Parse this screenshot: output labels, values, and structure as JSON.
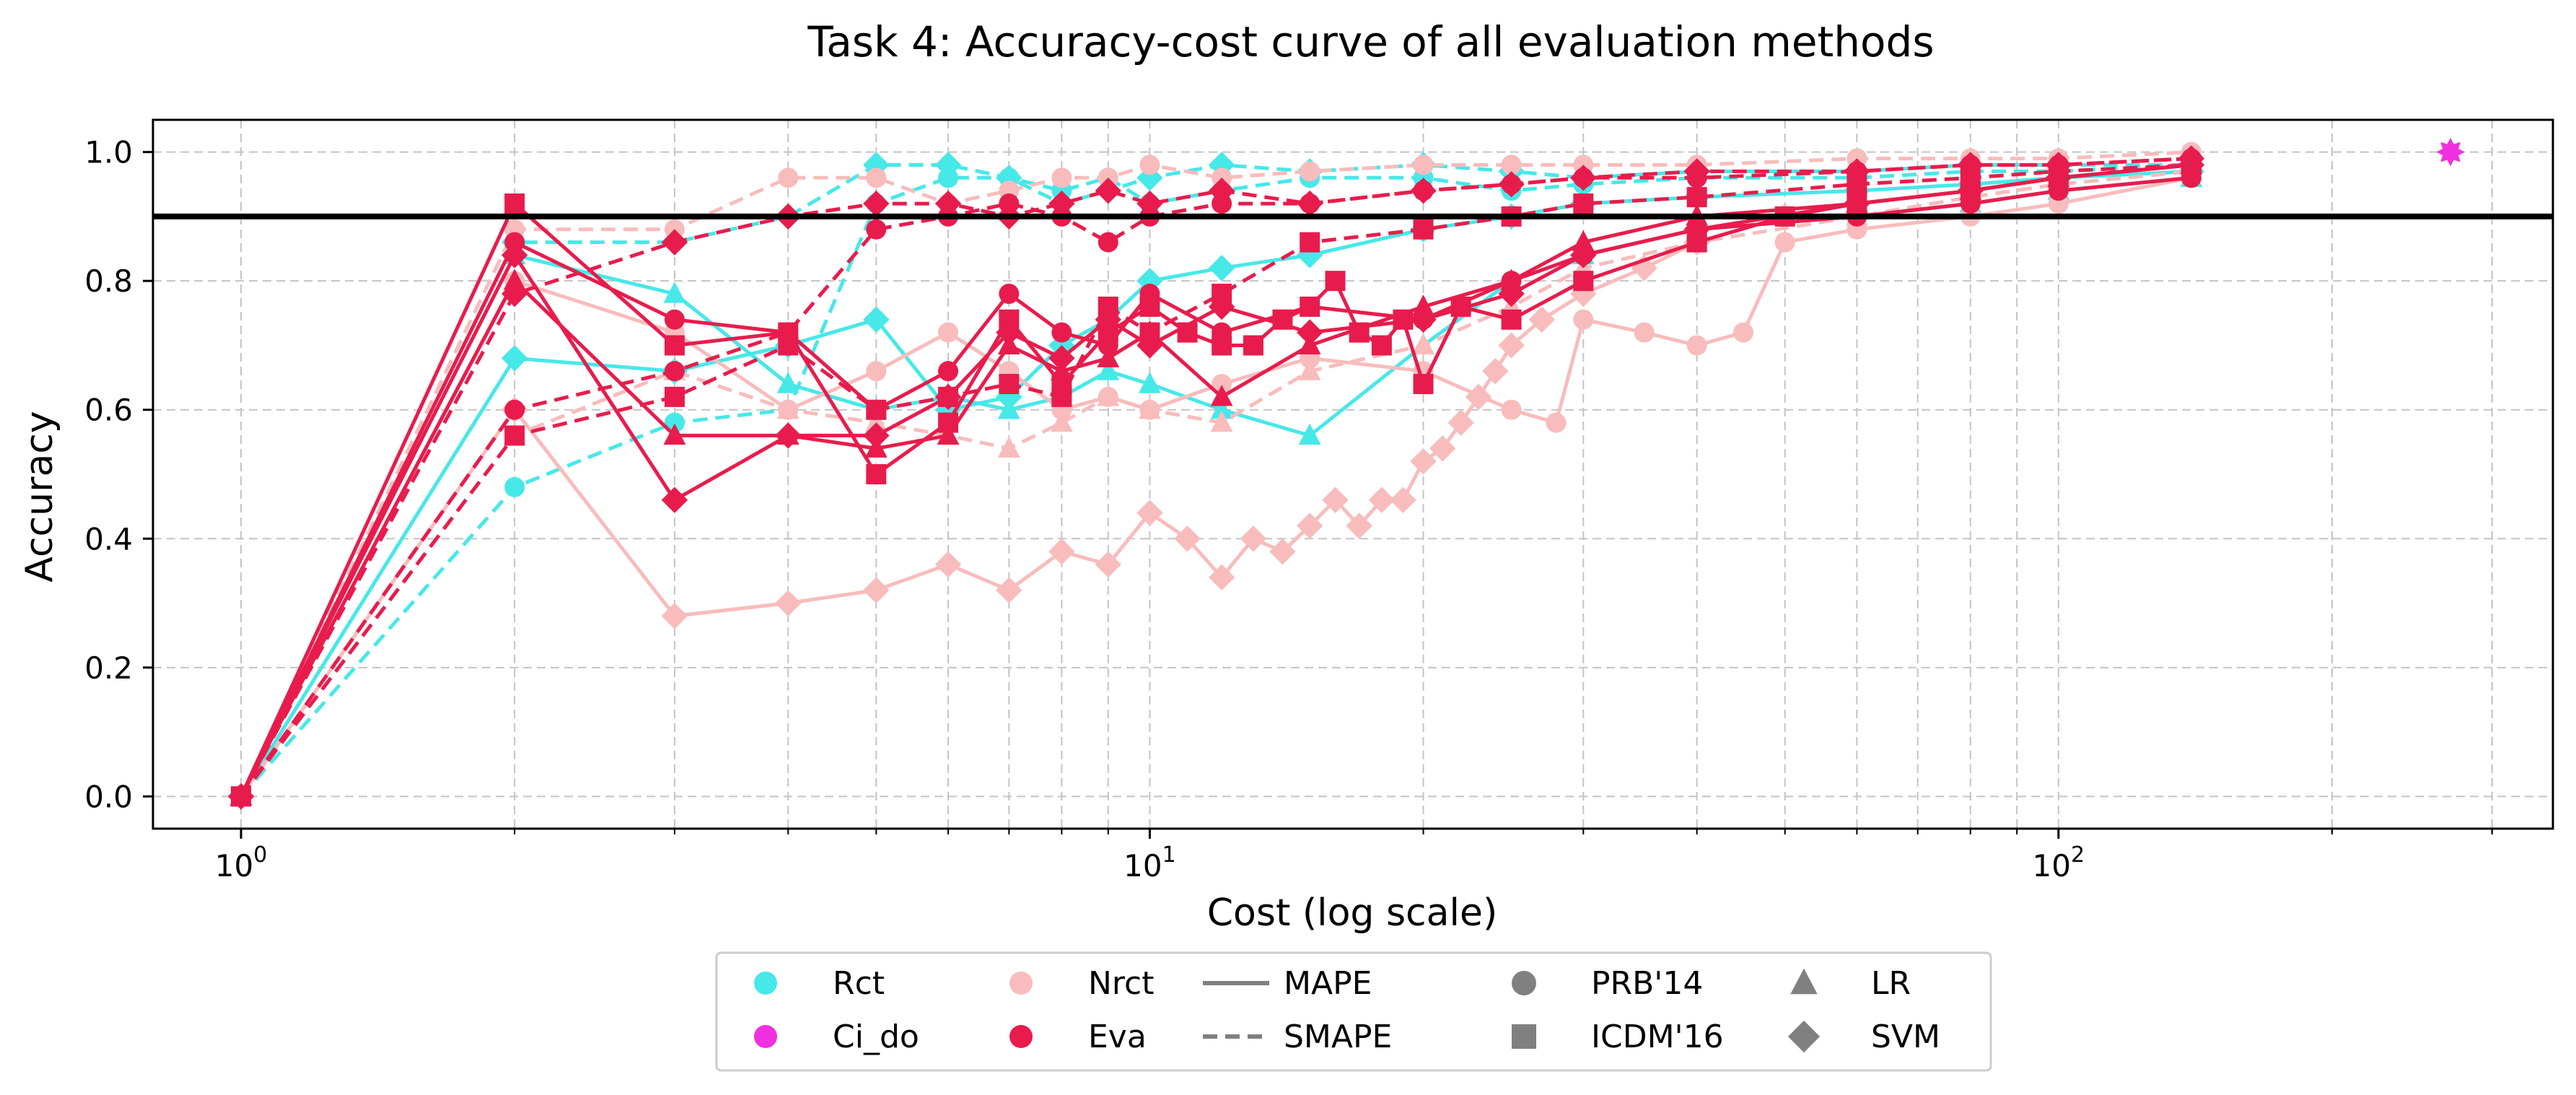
{
  "chart_data": {
    "type": "line",
    "title": "Task 4: Accuracy-cost curve of all evaluation methods",
    "xlabel": "Cost (log scale)",
    "ylabel": "Accuracy",
    "xscale": "log",
    "xlim": [
      0.8,
      350
    ],
    "ylim": [
      -0.05,
      1.05
    ],
    "grid": true,
    "x_ticks": [
      {
        "value": 1,
        "base": "10",
        "exp": "0"
      },
      {
        "value": 10,
        "base": "10",
        "exp": "1"
      },
      {
        "value": 100,
        "base": "10",
        "exp": "2"
      }
    ],
    "y_ticks": [
      {
        "value": 0.0,
        "label": "0.0"
      },
      {
        "value": 0.2,
        "label": "0.2"
      },
      {
        "value": 0.4,
        "label": "0.4"
      },
      {
        "value": 0.6,
        "label": "0.6"
      },
      {
        "value": 0.8,
        "label": "0.8"
      },
      {
        "value": 1.0,
        "label": "1.0"
      }
    ],
    "reference_line": {
      "y": 0.9
    },
    "method_colors": {
      "Rct": "#47e8e8",
      "Ci_do": "#f030e0",
      "Nrct": "#f8bcbc",
      "Eva": "#e81c4c"
    },
    "series": [
      {
        "method": "Rct",
        "metric": "MAPE",
        "source": "PRB'14",
        "model": "LR",
        "marker": "triangle",
        "x": [
          1,
          2,
          3,
          4,
          5,
          6,
          7,
          8,
          9,
          10,
          12,
          15,
          20,
          25,
          30,
          40,
          60,
          80,
          100,
          140
        ],
        "y": [
          0,
          0.84,
          0.78,
          0.64,
          0.6,
          0.62,
          0.6,
          0.62,
          0.66,
          0.64,
          0.6,
          0.56,
          0.7,
          0.8,
          0.84,
          0.88,
          0.9,
          0.92,
          0.94,
          0.96
        ]
      },
      {
        "method": "Rct",
        "metric": "MAPE",
        "source": "ICDM'16",
        "model": "SVM",
        "marker": "diamond",
        "x": [
          1,
          2,
          3,
          4,
          5,
          6,
          7,
          8,
          9,
          10,
          12,
          15,
          20,
          25,
          30,
          40,
          60,
          80,
          100,
          140
        ],
        "y": [
          0,
          0.68,
          0.66,
          0.7,
          0.74,
          0.6,
          0.62,
          0.7,
          0.74,
          0.8,
          0.82,
          0.84,
          0.88,
          0.9,
          0.92,
          0.93,
          0.94,
          0.95,
          0.96,
          0.97
        ]
      },
      {
        "method": "Rct",
        "metric": "SMAPE",
        "source": "PRB'14",
        "model": "LR",
        "marker": "circle",
        "x": [
          1,
          2,
          3,
          4,
          5,
          6,
          7,
          8,
          9,
          10,
          12,
          15,
          20,
          25,
          30,
          40,
          60,
          80,
          100,
          140
        ],
        "y": [
          0,
          0.48,
          0.58,
          0.6,
          0.92,
          0.96,
          0.96,
          0.94,
          0.96,
          0.92,
          0.94,
          0.96,
          0.96,
          0.94,
          0.95,
          0.96,
          0.96,
          0.97,
          0.97,
          0.98
        ]
      },
      {
        "method": "Rct",
        "metric": "SMAPE",
        "source": "ICDM'16",
        "model": "SVM",
        "marker": "diamond",
        "x": [
          1,
          2,
          3,
          4,
          5,
          6,
          7,
          8,
          9,
          10,
          12,
          15,
          20,
          25,
          30,
          40,
          60,
          80,
          100,
          140
        ],
        "y": [
          0,
          0.86,
          0.86,
          0.9,
          0.98,
          0.98,
          0.96,
          0.92,
          0.94,
          0.96,
          0.98,
          0.97,
          0.98,
          0.97,
          0.96,
          0.97,
          0.97,
          0.98,
          0.98,
          0.98
        ]
      },
      {
        "method": "Nrct",
        "metric": "MAPE",
        "source": "ICDM'16",
        "model": "SVM",
        "marker": "diamond",
        "x": [
          1,
          2,
          3,
          4,
          5,
          6,
          7,
          8,
          9,
          10,
          11,
          12,
          13,
          14,
          15,
          16,
          17,
          18,
          19,
          20,
          21,
          22,
          23,
          24,
          25,
          27,
          30,
          35,
          40,
          50,
          60,
          80,
          100,
          140
        ],
        "y": [
          0,
          0.6,
          0.28,
          0.3,
          0.32,
          0.36,
          0.32,
          0.38,
          0.36,
          0.44,
          0.4,
          0.34,
          0.4,
          0.38,
          0.42,
          0.46,
          0.42,
          0.46,
          0.46,
          0.52,
          0.54,
          0.58,
          0.62,
          0.66,
          0.7,
          0.74,
          0.78,
          0.82,
          0.86,
          0.9,
          0.92,
          0.94,
          0.96,
          0.98
        ]
      },
      {
        "method": "Nrct",
        "metric": "MAPE",
        "source": "PRB'14",
        "model": "LR",
        "marker": "circle",
        "x": [
          1,
          2,
          3,
          4,
          5,
          6,
          7,
          8,
          9,
          10,
          12,
          15,
          20,
          25,
          28,
          30,
          35,
          40,
          45,
          50,
          60,
          80,
          100,
          140
        ],
        "y": [
          0,
          0.8,
          0.72,
          0.6,
          0.66,
          0.72,
          0.66,
          0.6,
          0.62,
          0.6,
          0.64,
          0.68,
          0.66,
          0.6,
          0.58,
          0.74,
          0.72,
          0.7,
          0.72,
          0.86,
          0.88,
          0.9,
          0.92,
          0.96
        ]
      },
      {
        "method": "Nrct",
        "metric": "SMAPE",
        "source": "ICDM'16",
        "model": "LR",
        "marker": "triangle",
        "x": [
          1,
          2,
          3,
          4,
          5,
          6,
          7,
          8,
          9,
          10,
          12,
          15,
          20,
          25,
          30,
          40,
          60,
          80,
          100,
          140
        ],
        "y": [
          0,
          0.56,
          0.66,
          0.6,
          0.58,
          0.56,
          0.54,
          0.58,
          0.62,
          0.6,
          0.58,
          0.66,
          0.7,
          0.76,
          0.82,
          0.86,
          0.9,
          0.93,
          0.95,
          0.97
        ]
      },
      {
        "method": "Nrct",
        "metric": "SMAPE",
        "source": "PRB'14",
        "model": "SVM",
        "marker": "circle",
        "x": [
          1,
          2,
          3,
          4,
          5,
          6,
          7,
          8,
          9,
          10,
          12,
          15,
          20,
          25,
          30,
          40,
          60,
          80,
          100,
          140
        ],
        "y": [
          0,
          0.88,
          0.88,
          0.96,
          0.96,
          0.92,
          0.94,
          0.96,
          0.96,
          0.98,
          0.96,
          0.97,
          0.98,
          0.98,
          0.98,
          0.98,
          0.99,
          0.99,
          0.99,
          1.0
        ]
      },
      {
        "method": "Eva",
        "metric": "MAPE",
        "source": "ICDM'16",
        "model": "LR",
        "marker": "square",
        "x": [
          1,
          2,
          3,
          4,
          5,
          6,
          7,
          8,
          9,
          10,
          11,
          12,
          13,
          14,
          15,
          16,
          17,
          18,
          19,
          20,
          22,
          25,
          30,
          40,
          50,
          60,
          80,
          100,
          140
        ],
        "y": [
          0,
          0.92,
          0.7,
          0.72,
          0.5,
          0.58,
          0.74,
          0.64,
          0.72,
          0.76,
          0.72,
          0.7,
          0.7,
          0.74,
          0.76,
          0.8,
          0.72,
          0.7,
          0.74,
          0.64,
          0.76,
          0.74,
          0.8,
          0.86,
          0.9,
          0.92,
          0.94,
          0.96,
          0.98
        ]
      },
      {
        "method": "Eva",
        "metric": "MAPE",
        "source": "PRB'14",
        "model": "SVM",
        "marker": "circle",
        "x": [
          1,
          2,
          3,
          4,
          5,
          6,
          7,
          8,
          9,
          10,
          12,
          15,
          20,
          25,
          30,
          40,
          60,
          80,
          100,
          140
        ],
        "y": [
          0,
          0.86,
          0.74,
          0.72,
          0.6,
          0.66,
          0.78,
          0.72,
          0.7,
          0.78,
          0.72,
          0.76,
          0.74,
          0.8,
          0.84,
          0.88,
          0.9,
          0.92,
          0.94,
          0.96
        ]
      },
      {
        "method": "Eva",
        "metric": "MAPE",
        "source": "PRB'14",
        "model": "LR",
        "marker": "triangle",
        "x": [
          1,
          2,
          3,
          4,
          5,
          6,
          7,
          8,
          9,
          10,
          12,
          15,
          20,
          25,
          30,
          40,
          60,
          80,
          100,
          140
        ],
        "y": [
          0,
          0.8,
          0.56,
          0.56,
          0.54,
          0.56,
          0.7,
          0.66,
          0.68,
          0.72,
          0.62,
          0.7,
          0.76,
          0.8,
          0.86,
          0.9,
          0.92,
          0.94,
          0.96,
          0.98
        ]
      },
      {
        "method": "Eva",
        "metric": "MAPE",
        "source": "ICDM'16",
        "model": "SVM",
        "marker": "diamond",
        "x": [
          1,
          2,
          3,
          4,
          5,
          6,
          7,
          8,
          9,
          10,
          12,
          15,
          20,
          25,
          30,
          40,
          60,
          80,
          100,
          140
        ],
        "y": [
          0,
          0.84,
          0.46,
          0.56,
          0.56,
          0.62,
          0.72,
          0.68,
          0.74,
          0.7,
          0.76,
          0.72,
          0.74,
          0.78,
          0.84,
          0.88,
          0.92,
          0.94,
          0.96,
          0.98
        ]
      },
      {
        "method": "Eva",
        "metric": "SMAPE",
        "source": "ICDM'16",
        "model": "SVM",
        "marker": "diamond",
        "x": [
          1,
          2,
          3,
          4,
          5,
          6,
          7,
          8,
          9,
          10,
          12,
          15,
          20,
          25,
          30,
          40,
          60,
          80,
          100,
          140
        ],
        "y": [
          0,
          0.78,
          0.86,
          0.9,
          0.92,
          0.92,
          0.9,
          0.92,
          0.94,
          0.92,
          0.94,
          0.92,
          0.94,
          0.95,
          0.96,
          0.97,
          0.97,
          0.98,
          0.98,
          0.99
        ]
      },
      {
        "method": "Eva",
        "metric": "SMAPE",
        "source": "ICDM'16",
        "model": "LR",
        "marker": "square",
        "x": [
          1,
          2,
          3,
          4,
          5,
          6,
          7,
          8,
          9,
          10,
          12,
          15,
          20,
          25,
          30,
          40,
          60,
          80,
          100,
          140
        ],
        "y": [
          0,
          0.56,
          0.62,
          0.7,
          0.6,
          0.62,
          0.64,
          0.62,
          0.76,
          0.72,
          0.78,
          0.86,
          0.88,
          0.9,
          0.92,
          0.93,
          0.95,
          0.96,
          0.97,
          0.98
        ]
      },
      {
        "method": "Eva",
        "metric": "SMAPE",
        "source": "PRB'14",
        "model": "LR",
        "marker": "circle",
        "x": [
          1,
          2,
          3,
          4,
          5,
          6,
          7,
          8,
          9,
          10,
          12,
          15,
          20,
          25,
          30,
          40,
          60,
          80,
          100,
          140
        ],
        "y": [
          0,
          0.6,
          0.66,
          0.72,
          0.88,
          0.9,
          0.92,
          0.9,
          0.86,
          0.9,
          0.92,
          0.92,
          0.94,
          0.95,
          0.96,
          0.96,
          0.97,
          0.98,
          0.98,
          0.99
        ]
      },
      {
        "method": "Ci_do",
        "metric": "MAPE",
        "source": "PRB'14",
        "model": "SVM",
        "marker": "star",
        "x": [
          270
        ],
        "y": [
          1.0
        ]
      }
    ],
    "legend": {
      "placement": "below",
      "entries": [
        {
          "label": "Rct",
          "kind": "method",
          "key": "Rct"
        },
        {
          "label": "Ci_do",
          "kind": "method",
          "key": "Ci_do"
        },
        {
          "label": "Nrct",
          "kind": "method",
          "key": "Nrct"
        },
        {
          "label": "Eva",
          "kind": "method",
          "key": "Eva"
        },
        {
          "label": "MAPE",
          "kind": "line",
          "style": "solid"
        },
        {
          "label": "SMAPE",
          "kind": "line",
          "style": "dashed"
        },
        {
          "label": "PRB'14",
          "kind": "marker",
          "shape": "circle"
        },
        {
          "label": "ICDM'16",
          "kind": "marker",
          "shape": "square"
        },
        {
          "label": "LR",
          "kind": "marker",
          "shape": "triangle"
        },
        {
          "label": "SVM",
          "kind": "marker",
          "shape": "diamond"
        }
      ]
    }
  }
}
